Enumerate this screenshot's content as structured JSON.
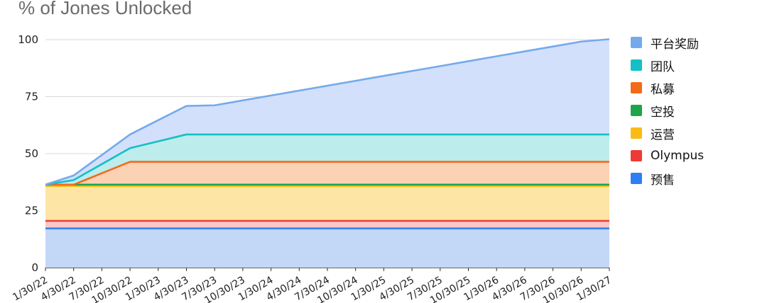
{
  "chart_data": {
    "type": "area",
    "stacked": true,
    "title": "% of Jones Unlocked",
    "xlabel": "",
    "ylabel": "",
    "ylim": [
      0,
      100
    ],
    "yticks": [
      0,
      25,
      50,
      75,
      100
    ],
    "grid": true,
    "legend_position": "right",
    "x": [
      "1/30/22",
      "4/30/22",
      "7/30/22",
      "10/30/22",
      "1/30/23",
      "4/30/23",
      "7/30/23",
      "10/30/23",
      "1/30/24",
      "4/30/24",
      "7/30/24",
      "10/30/24",
      "1/30/25",
      "4/30/25",
      "7/30/25",
      "10/30/25",
      "1/30/26",
      "4/30/26",
      "7/30/26",
      "10/30/26",
      "1/30/27"
    ],
    "x_tick_labels": [
      "1/30/22",
      "4/30/22",
      "7/30/22",
      "10/30/22",
      "1/30/23",
      "4/30/23",
      "7/30/23",
      "10/30/23",
      "1/30/24",
      "4/30/24",
      "7/30/24",
      "10/30/24",
      "1/30/25",
      "4/30/25",
      "7/30/25",
      "10/30/25",
      "1/30/26",
      "4/30/26",
      "7/30/26",
      "10/30/26",
      "1/30/27"
    ],
    "series": [
      {
        "name": "预售",
        "color": "#2f7ef3",
        "fill": "#c3d7f7",
        "values": [
          17.2,
          17.2,
          17.2,
          17.2,
          17.2,
          17.2,
          17.2,
          17.2,
          17.2,
          17.2,
          17.2,
          17.2,
          17.2,
          17.2,
          17.2,
          17.2,
          17.2,
          17.2,
          17.2,
          17.2,
          17.2
        ]
      },
      {
        "name": "Olympus",
        "color": "#ee3a36",
        "fill": "#f9c8c6",
        "values": [
          3.3,
          3.3,
          3.3,
          3.3,
          3.3,
          3.3,
          3.3,
          3.3,
          3.3,
          3.3,
          3.3,
          3.3,
          3.3,
          3.3,
          3.3,
          3.3,
          3.3,
          3.3,
          3.3,
          3.3,
          3.3
        ]
      },
      {
        "name": "运营",
        "color": "#f9bc16",
        "fill": "#fde5a6",
        "values": [
          15.3,
          15.3,
          15.3,
          15.3,
          15.3,
          15.3,
          15.3,
          15.3,
          15.3,
          15.3,
          15.3,
          15.3,
          15.3,
          15.3,
          15.3,
          15.3,
          15.3,
          15.3,
          15.3,
          15.3,
          15.3
        ]
      },
      {
        "name": "空投",
        "color": "#1ca64a",
        "fill": "#cfe9cf",
        "values": [
          0.6,
          0.6,
          0.6,
          0.6,
          0.6,
          0.6,
          0.6,
          0.6,
          0.6,
          0.6,
          0.6,
          0.6,
          0.6,
          0.6,
          0.6,
          0.6,
          0.6,
          0.6,
          0.6,
          0.6,
          0.6
        ]
      },
      {
        "name": "私募",
        "color": "#f26b1b",
        "fill": "#fcd2b5",
        "values": [
          0,
          0,
          5,
          10,
          10,
          10,
          10,
          10,
          10,
          10,
          10,
          10,
          10,
          10,
          10,
          10,
          10,
          10,
          10,
          10,
          10
        ]
      },
      {
        "name": "团队",
        "color": "#15bfc5",
        "fill": "#bdecec",
        "values": [
          0,
          2,
          4,
          6,
          9,
          12,
          12,
          12,
          12,
          12,
          12,
          12,
          12,
          12,
          12,
          12,
          12,
          12,
          12,
          12,
          12
        ]
      },
      {
        "name": "平台奖励",
        "color": "#74aaeb",
        "fill": "#d3e0fb",
        "values": [
          0,
          2,
          4,
          6,
          9.3,
          12.5,
          12.8,
          14.95,
          17.1,
          19.25,
          21.4,
          23.55,
          25.7,
          27.85,
          30.0,
          32.15,
          34.3,
          36.45,
          38.6,
          40.75,
          41.8
        ]
      }
    ]
  },
  "legend": {
    "items": [
      {
        "label": "平台奖励",
        "color": "#74aaeb"
      },
      {
        "label": "团队",
        "color": "#15bfc5"
      },
      {
        "label": "私募",
        "color": "#f26b1b"
      },
      {
        "label": "空投",
        "color": "#1ca64a"
      },
      {
        "label": "运营",
        "color": "#f9bc16"
      },
      {
        "label": "Olympus",
        "color": "#ee3a36"
      },
      {
        "label": "预售",
        "color": "#2f7ef3"
      }
    ]
  }
}
